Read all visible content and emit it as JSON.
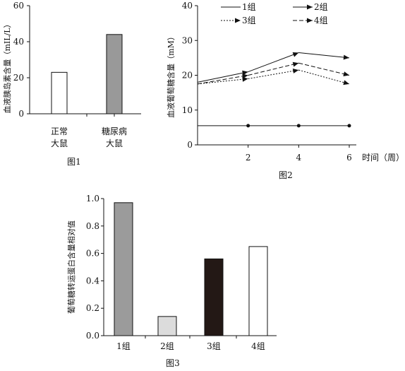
{
  "chart_data": [
    {
      "type": "bar",
      "caption": "图1",
      "ylabel": "血液胰岛素含量（mIL/L）",
      "ylim": [
        0,
        60
      ],
      "yticks": [
        0,
        20,
        40,
        60
      ],
      "categories": [
        "正常\n大鼠",
        "糖尿病\n大鼠"
      ],
      "values": [
        23,
        44
      ],
      "colors": [
        "#ffffff",
        "#999999"
      ]
    },
    {
      "type": "line",
      "caption": "图2",
      "ylabel": "血液葡萄糖含量（mM）",
      "xlabel": "时间（周）",
      "ylim": [
        0,
        40
      ],
      "yticks": [
        0,
        10,
        20,
        30,
        40
      ],
      "xticks": [
        2,
        4,
        6
      ],
      "x": [
        0,
        2,
        4,
        6
      ],
      "series": [
        {
          "name": "1组",
          "values": [
            5.5,
            5.5,
            5.5,
            5.5
          ],
          "style": "solid-dots"
        },
        {
          "name": "2组",
          "values": [
            18,
            21,
            26.5,
            25
          ],
          "style": "solid-arrow"
        },
        {
          "name": "3组",
          "values": [
            17.5,
            19,
            21.5,
            17.5
          ],
          "style": "dotted-arrow"
        },
        {
          "name": "4组",
          "values": [
            17.5,
            20,
            23.5,
            20
          ],
          "style": "dashed-arrow"
        }
      ]
    },
    {
      "type": "bar",
      "caption": "图3",
      "ylabel": "葡萄糖转运蛋白含量相对值",
      "ylim": [
        0,
        1.0
      ],
      "yticks": [
        "0.0",
        "0.2",
        "0.4",
        "0.6",
        "0.8",
        "1.0"
      ],
      "categories": [
        "1组",
        "2组",
        "3组",
        "4组"
      ],
      "values": [
        0.97,
        0.14,
        0.56,
        0.65
      ],
      "colors": [
        "#9b9b9b",
        "#dcdcdc",
        "#231815",
        "#ffffff"
      ]
    }
  ]
}
